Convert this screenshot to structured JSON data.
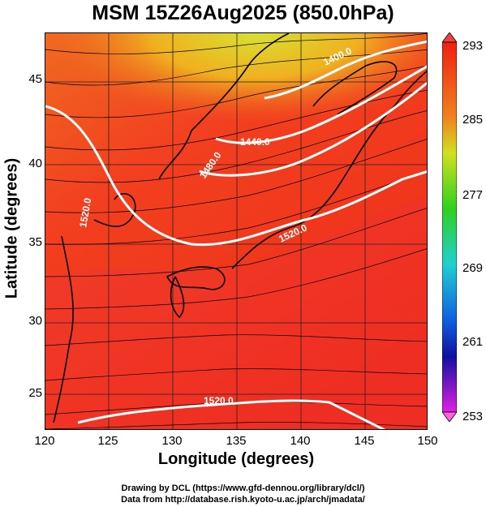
{
  "title": "MSM 15Z26Aug2025 (850.0hPa)",
  "xlabel": "Longitude (degrees)",
  "ylabel": "Latitude  (degrees)",
  "xticks": [
    "120",
    "125",
    "130",
    "135",
    "140",
    "145",
    "150"
  ],
  "yticks": [
    "45",
    "40",
    "35",
    "30",
    "25"
  ],
  "colorbar_ticks": [
    "293",
    "285",
    "277",
    "269",
    "261",
    "253"
  ],
  "contour_labels": [
    "1440.0",
    "1480.0",
    "1520.0",
    "1520.0",
    "1520.0",
    "1400.0"
  ],
  "credit_line1": "Drawing by DCL (https://www.gfd-dennou.org/library/dcl/)",
  "credit_line2": "Data from http://database.rish.kyoto-u.ac.jp/arch/jmadata/",
  "colors": {
    "warm": "#f03a1c",
    "hot": "#f5506a",
    "cool": "#e8d020",
    "contour": "#ffffff",
    "streamline": "#000000"
  }
}
